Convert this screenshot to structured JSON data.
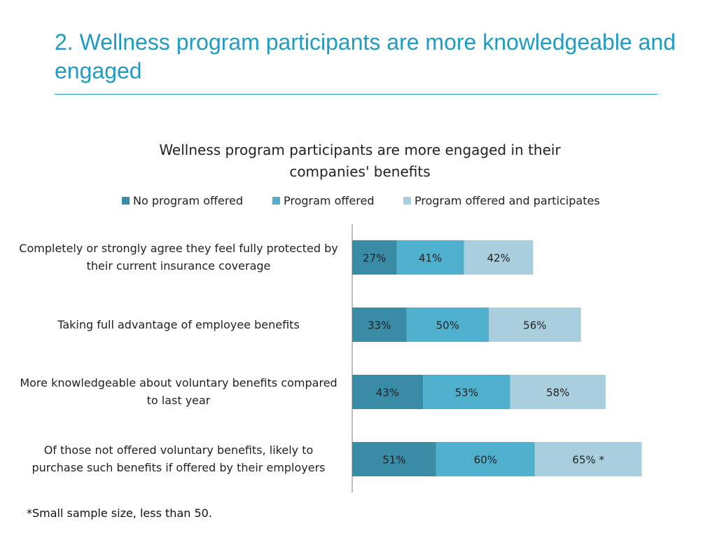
{
  "slide": {
    "title": "2. Wellness program participants  are more knowledgeable and engaged",
    "footnote": "*Small sample size, less than 50."
  },
  "chart_data": {
    "type": "bar",
    "orientation": "horizontal",
    "stacked": true,
    "title": "Wellness program participants are more engaged in their companies' benefits",
    "legend_position": "top",
    "categories": [
      "Completely or strongly agree they feel fully protected by their current insurance coverage",
      "Taking full advantage of employee benefits",
      "More knowledgeable about voluntary benefits compared to last year",
      "Of those not offered voluntary benefits, likely to purchase such benefits if offered by their employers"
    ],
    "series": [
      {
        "name": "No program offered",
        "color": "#3a8ba5",
        "values": [
          27,
          33,
          43,
          51
        ],
        "labels": [
          "27%",
          "33%",
          "43%",
          "51%"
        ]
      },
      {
        "name": "Program offered",
        "color": "#4fb0ce",
        "values": [
          41,
          50,
          53,
          60
        ],
        "labels": [
          "41%",
          "50%",
          "53%",
          "60%"
        ]
      },
      {
        "name": "Program offered and participates",
        "color": "#a9cfdf",
        "values": [
          42,
          56,
          58,
          65
        ],
        "labels": [
          "42%",
          "56%",
          "58%",
          "65% *"
        ]
      }
    ],
    "grid": false
  }
}
